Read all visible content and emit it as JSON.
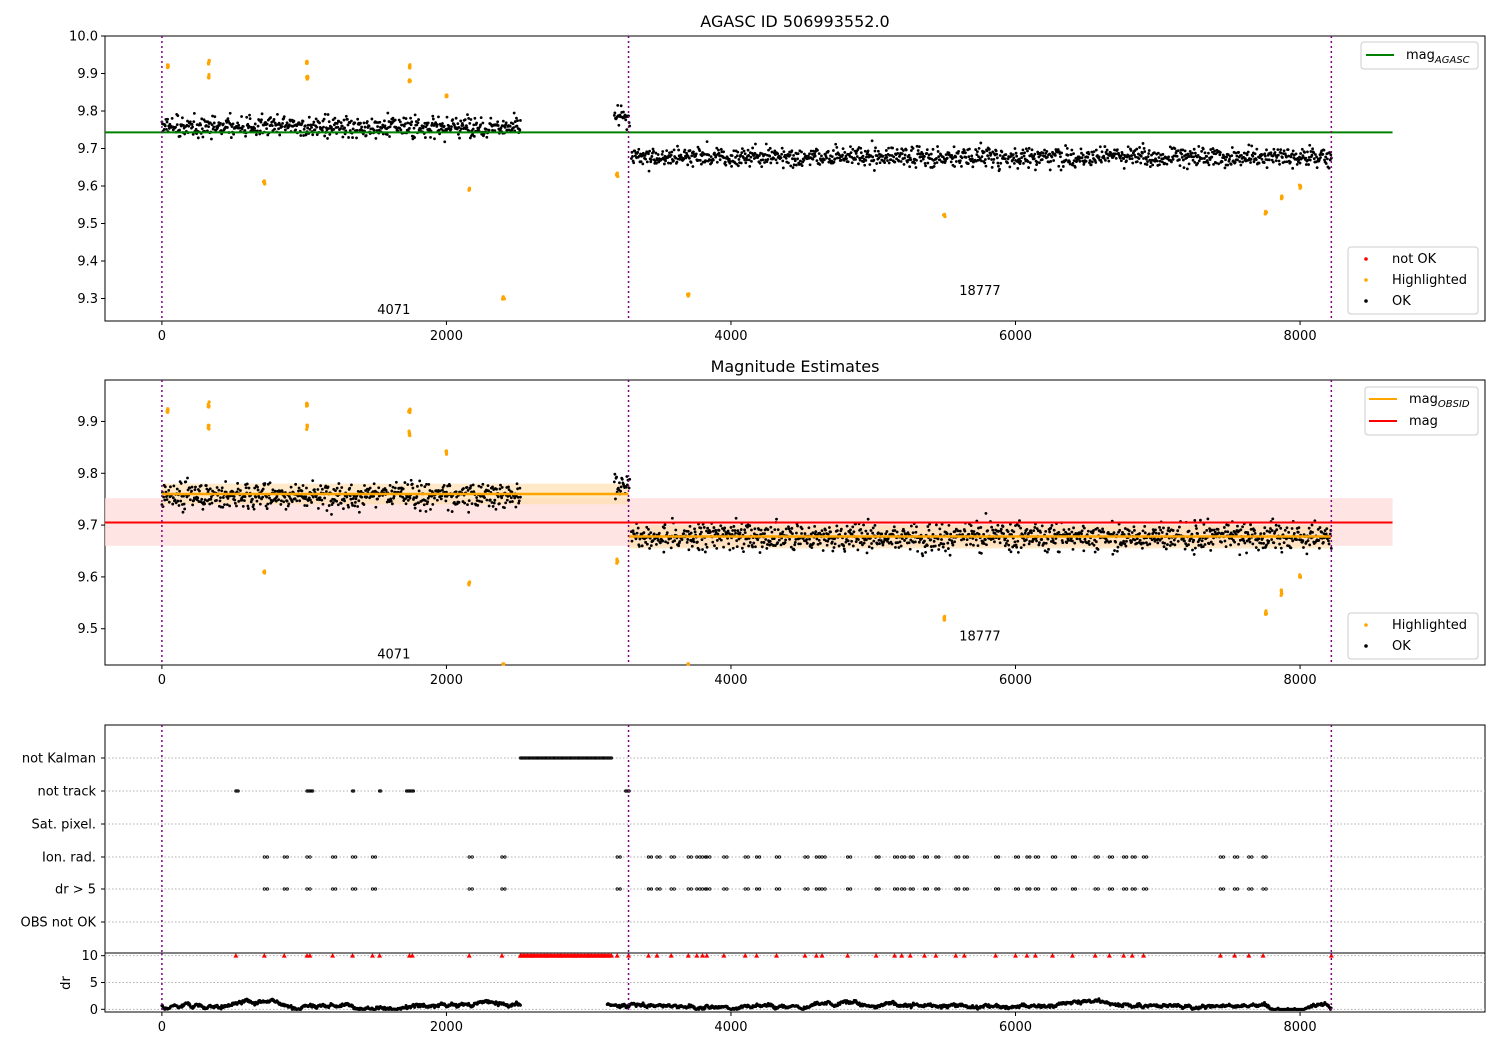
{
  "title": "AGASC ID 506993552.0",
  "subtitle": "Magnitude Estimates",
  "colors": {
    "ok": "#000000",
    "highlighted": "#ffa500",
    "not_ok": "#ff0000",
    "mag_agasc": "#008000",
    "mag_obsid": "#ffa500",
    "mag": "#ff0000",
    "obs_boundary": "#800080",
    "flag_marker": "#ff0000"
  },
  "obsids": [
    {
      "label": "4071",
      "label_x": 1630
    },
    {
      "label": "18777",
      "label_x": 5750
    }
  ],
  "obs_boundaries": [
    0,
    3280,
    8220
  ],
  "chart_data": [
    {
      "type": "scatter",
      "title": "AGASC ID 506993552.0",
      "xlim": [
        -400,
        9300
      ],
      "ylim": [
        9.24,
        10.0
      ],
      "x_ticks": [
        0,
        2000,
        4000,
        6000,
        8000
      ],
      "y_ticks": [
        9.3,
        9.4,
        9.5,
        9.6,
        9.7,
        9.8,
        9.9,
        10.0
      ],
      "grid": false,
      "obsid_label_y": 9.27,
      "obsid_label_y2": 9.32,
      "series": [
        {
          "name": "not OK",
          "color": "#ff0000",
          "segments": []
        },
        {
          "name": "Highlighted",
          "color": "#ffa500",
          "points": [
            [
              40,
              9.92
            ],
            [
              330,
              9.93
            ],
            [
              330,
              9.89
            ],
            [
              1020,
              9.93
            ],
            [
              1020,
              9.89
            ],
            [
              1740,
              9.92
            ],
            [
              1740,
              9.88
            ],
            [
              2000,
              9.84
            ],
            [
              720,
              9.61
            ],
            [
              2160,
              9.59
            ],
            [
              2400,
              9.3
            ],
            [
              3200,
              9.63
            ],
            [
              3700,
              9.31
            ],
            [
              5500,
              9.52
            ],
            [
              7760,
              9.53
            ],
            [
              7870,
              9.57
            ],
            [
              8000,
              9.6
            ]
          ]
        },
        {
          "name": "OK",
          "color": "#000000",
          "segments": [
            {
              "x_start": 0,
              "x_end": 2520,
              "mean": 9.758
            },
            {
              "x_start": 3180,
              "x_end": 3290,
              "mean": 9.78
            },
            {
              "x_start": 3300,
              "x_end": 8220,
              "mean": 9.678
            }
          ]
        }
      ],
      "lines": [
        {
          "name": "mag_AGASC",
          "legend_text": "mag",
          "legend_sub": "AGASC",
          "y": 9.743,
          "x_range": [
            -400,
            8650
          ],
          "color": "#008000"
        }
      ],
      "legend_lines": {
        "position": "top-right"
      },
      "legend_points": {
        "position": "bottom-right",
        "entries": [
          "not OK",
          "Highlighted",
          "OK"
        ]
      }
    },
    {
      "type": "scatter",
      "title": "Magnitude Estimates",
      "xlim": [
        -400,
        9300
      ],
      "ylim": [
        9.43,
        9.98
      ],
      "x_ticks": [
        0,
        2000,
        4000,
        6000,
        8000
      ],
      "y_ticks": [
        9.5,
        9.6,
        9.7,
        9.8,
        9.9
      ],
      "grid": false,
      "series": [
        {
          "name": "Highlighted",
          "color": "#ffa500",
          "points": [
            [
              40,
              9.92
            ],
            [
              330,
              9.93
            ],
            [
              330,
              9.89
            ],
            [
              1020,
              9.93
            ],
            [
              1020,
              9.89
            ],
            [
              1740,
              9.92
            ],
            [
              1740,
              9.88
            ],
            [
              2000,
              9.84
            ],
            [
              720,
              9.61
            ],
            [
              2160,
              9.59
            ],
            [
              2400,
              9.43
            ],
            [
              3200,
              9.63
            ],
            [
              3700,
              9.43
            ],
            [
              5500,
              9.52
            ],
            [
              7760,
              9.53
            ],
            [
              7870,
              9.57
            ],
            [
              8000,
              9.6
            ]
          ]
        },
        {
          "name": "OK",
          "color": "#000000",
          "segments": [
            {
              "x_start": 0,
              "x_end": 2520,
              "mean": 9.758
            },
            {
              "x_start": 3180,
              "x_end": 3290,
              "mean": 9.78
            },
            {
              "x_start": 3300,
              "x_end": 8220,
              "mean": 9.678
            }
          ]
        }
      ],
      "lines": [
        {
          "name": "mag_OBSID",
          "legend_text": "mag",
          "legend_sub": "OBSID",
          "segments": [
            {
              "x_range": [
                0,
                3280
              ],
              "y": 9.76,
              "band": [
                9.74,
                9.78
              ]
            },
            {
              "x_range": [
                3280,
                8220
              ],
              "y": 9.678,
              "band": [
                9.655,
                9.7
              ]
            }
          ],
          "color": "#ffa500"
        },
        {
          "name": "mag",
          "legend_text": "mag",
          "y": 9.705,
          "band": [
            9.66,
            9.752
          ],
          "x_range": [
            -400,
            8650
          ],
          "color": "#ff0000"
        }
      ],
      "obsid_label_y": 9.45,
      "obsid_label_y2": 9.485,
      "legend_lines": {
        "position": "top-right"
      },
      "legend_points": {
        "position": "bottom-right",
        "entries": [
          "Highlighted",
          "OK"
        ]
      }
    },
    {
      "type": "scatter",
      "title": "",
      "xlim": [
        -400,
        9300
      ],
      "rows": [
        "not Kalman",
        "not track",
        "Sat. pixel.",
        "Ion. rad.",
        "dr > 5",
        "OBS not OK"
      ],
      "flags": {
        "not Kalman": [
          [
            2520,
            3160
          ]
        ],
        "not track": [
          [
            520,
            540
          ],
          [
            1020,
            1060
          ],
          [
            1340,
            1350
          ],
          [
            1530,
            1540
          ],
          [
            1720,
            1770
          ],
          [
            3260,
            3290
          ]
        ],
        "Sat. pixel.": [],
        "Ion. rad.": [
          720,
          860,
          1020,
          1200,
          1340,
          1480,
          2160,
          2390,
          3200,
          3420,
          3480,
          3580,
          3700,
          3760,
          3800,
          3830,
          3950,
          4100,
          4180,
          4320,
          4520,
          4600,
          4640,
          4820,
          5020,
          5150,
          5200,
          5260,
          5360,
          5440,
          5580,
          5640,
          5860,
          6000,
          6080,
          6140,
          6260,
          6400,
          6560,
          6660,
          6760,
          6820,
          6900,
          7440,
          7540,
          7640,
          7740
        ],
        "dr > 5": [
          720,
          860,
          1020,
          1200,
          1340,
          1480,
          2160,
          2390,
          3200,
          3420,
          3480,
          3580,
          3700,
          3760,
          3800,
          3830,
          3950,
          4100,
          4180,
          4320,
          4520,
          4600,
          4640,
          4820,
          5020,
          5150,
          5200,
          5260,
          5360,
          5440,
          5580,
          5640,
          5860,
          6000,
          6080,
          6140,
          6260,
          6400,
          6560,
          6660,
          6760,
          6820,
          6900,
          7440,
          7540,
          7640,
          7740
        ],
        "OBS not OK": []
      }
    },
    {
      "type": "scatter",
      "title": "",
      "ylabel": "dr",
      "xlim": [
        -400,
        9300
      ],
      "ylim": [
        -0.5,
        10.5
      ],
      "x_ticks": [
        0,
        2000,
        4000,
        6000,
        8000
      ],
      "y_ticks": [
        0,
        5,
        10
      ],
      "series": [
        {
          "name": "dr",
          "color": "#000000",
          "segments": [
            {
              "x_start": 0,
              "x_end": 2520,
              "mean": 0.6
            },
            {
              "x_start": 3130,
              "x_end": 8220,
              "mean": 0.8
            }
          ]
        },
        {
          "name": "flag markers",
          "color": "#ff0000",
          "y": 10,
          "x": [
            520,
            720,
            860,
            1020,
            1040,
            1200,
            1340,
            1480,
            1530,
            1740,
            1760,
            2160,
            2390,
            2520,
            2600,
            2700,
            2800,
            2900,
            3000,
            3100,
            3200,
            3280,
            3420,
            3480,
            3580,
            3700,
            3760,
            3800,
            3830,
            3950,
            4100,
            4180,
            4320,
            4520,
            4600,
            4640,
            4820,
            5020,
            5150,
            5200,
            5260,
            5360,
            5440,
            5580,
            5640,
            5860,
            6000,
            6080,
            6140,
            6260,
            6400,
            6560,
            6660,
            6760,
            6820,
            6900,
            7440,
            7540,
            7640,
            7740,
            8220
          ]
        }
      ]
    }
  ]
}
